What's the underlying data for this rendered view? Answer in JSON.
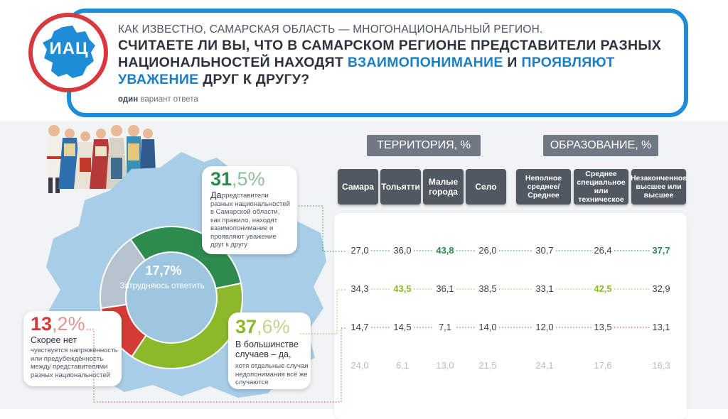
{
  "header": {
    "logo": "ИАЦ",
    "subtitle": "КАК ИЗВЕСТНО, САМАРСКАЯ ОБЛАСТЬ — МНОГОНАЦИОНАЛЬНЫЙ РЕГИОН.",
    "question_part1": "СЧИТАЕТЕ ЛИ ВЫ, ЧТО В САМАРСКОМ РЕГИОНЕ ПРЕДСТАВИТЕЛИ РАЗНЫХ НАЦИОНАЛЬНОСТЕЙ НАХОДЯТ",
    "question_hl1": "ВЗАИМОПОНИМАНИЕ",
    "question_and": "И",
    "question_hl2": "ПРОЯВЛЯЮТ УВАЖЕНИЕ",
    "question_end": "ДРУГ К ДРУГУ?",
    "note_bold": "один",
    "note_rest": "вариант ответа"
  },
  "colors": {
    "brand_blue": "#1f8dd6",
    "yes_green": "#2e8b4e",
    "most_lightgreen": "#8cb82c",
    "no_red": "#d23c34",
    "unsure_gray": "#b5c3cf",
    "map_blue": "#a8cde6"
  },
  "callouts": {
    "yes": {
      "int": "31",
      "dec": ",5%",
      "title": "Да,",
      "text": "представители разных национальностей в Самарской области, как правило, находят взаимопонимание и проявляют уважение друг к другу"
    },
    "most": {
      "int": "37",
      "dec": ",6%",
      "title": "В большинстве случаев – да,",
      "text": "хотя отдельные случаи недопонимания всё же случаются"
    },
    "no": {
      "int": "13",
      "dec": ",2%",
      "title": "Скорее нет",
      "text": "чувствуется напряжённость или предубеждённость между представителями разных национальностей"
    },
    "unsure": {
      "value": "17,7%",
      "label": "Затрудняюсь ответить"
    }
  },
  "groups": {
    "territory": "ТЕРРИТОРИЯ, %",
    "education": "ОБРАЗОВАНИЕ, %"
  },
  "columns": [
    "Самара",
    "Тольятти",
    "Малые города",
    "Село",
    "Неполное среднее/ Среднее",
    "Среднее специальное или техническое",
    "Незаконченное высшее или высшее"
  ],
  "chart_data": {
    "type": "table",
    "title": "Считаете ли вы, что в Самарском регионе представители разных национальностей находят взаимопонимание и проявляют уважение друг к другу?",
    "overall": [
      {
        "answer": "Да",
        "value": 31.5
      },
      {
        "answer": "В большинстве случаев – да",
        "value": 37.6
      },
      {
        "answer": "Скорее нет",
        "value": 13.2
      },
      {
        "answer": "Затрудняюсь ответить",
        "value": 17.7
      }
    ],
    "columns": [
      "Самара",
      "Тольятти",
      "Малые города",
      "Село",
      "Неполное среднее/ Среднее",
      "Среднее специальное или техническое",
      "Незаконченное высшее или высшее"
    ],
    "rows": [
      {
        "answer": "Да",
        "values": [
          "27,0",
          "36,0",
          "43,8",
          "26,0",
          "30,7",
          "26,4",
          "37,7"
        ],
        "highlight": [
          2,
          6
        ]
      },
      {
        "answer": "В большинстве случаев – да",
        "values": [
          "34,3",
          "43,5",
          "36,1",
          "38,5",
          "33,1",
          "42,5",
          "32,9"
        ],
        "highlight": [
          1,
          5
        ]
      },
      {
        "answer": "Скорее нет",
        "values": [
          "14,7",
          "14,5",
          "7,1",
          "14,0",
          "12,0",
          "13,5",
          "13,1"
        ],
        "highlight": []
      },
      {
        "answer": "Затрудняюсь ответить",
        "values": [
          "24,0",
          "6,1",
          "13,0",
          "21,5",
          "24,1",
          "17,6",
          "16,3"
        ],
        "highlight": []
      }
    ]
  }
}
